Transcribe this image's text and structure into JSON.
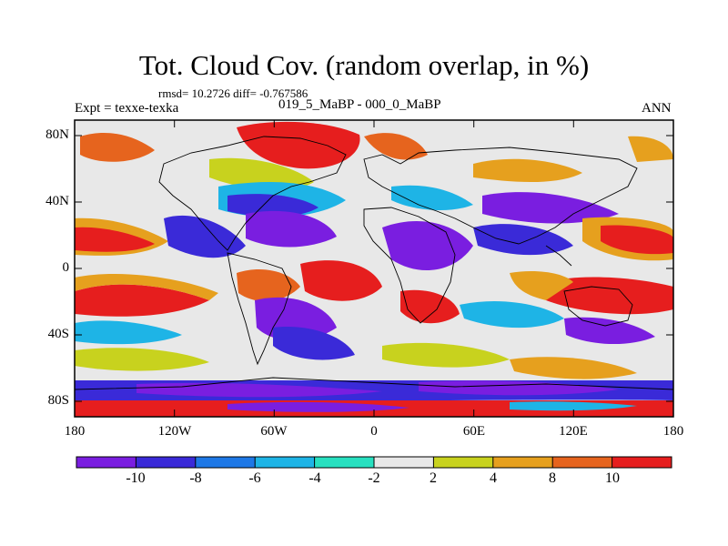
{
  "title": "Tot. Cloud Cov. (random overlap, in %)",
  "stats": "rmsd= 10.2726 diff= -0.767586",
  "experiment": "Expt = texxe-texka",
  "case": "019_5_MaBP - 000_0_MaBP",
  "season": "ANN",
  "lat_labels": [
    "80N",
    "40N",
    "0",
    "40S",
    "80S"
  ],
  "lon_labels": [
    "180",
    "120W",
    "60W",
    "0",
    "60E",
    "120E",
    "180"
  ],
  "colorbar": {
    "labels": [
      "-10",
      "-8",
      "-6",
      "-4",
      "-2",
      "2",
      "4",
      "8",
      "10"
    ],
    "colors": [
      "#7a1ee0",
      "#3a2ad8",
      "#1e78e6",
      "#1eb4e6",
      "#28e0c0",
      "#e8e8e8",
      "#c8d21e",
      "#e6a01e",
      "#e6641e",
      "#e61e1e"
    ]
  }
}
